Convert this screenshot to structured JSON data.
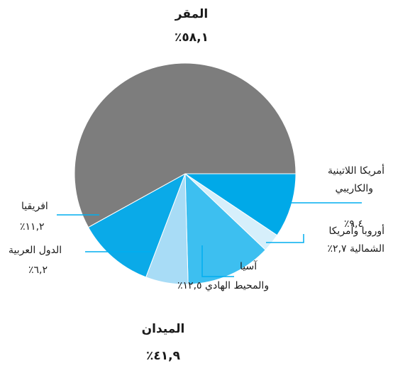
{
  "chart_data": {
    "type": "pie",
    "start_angle_deg": 0,
    "direction": "clockwise",
    "slices": [
      {
        "name": "أمريكا اللاتينية والكاريبي",
        "value": 9.4,
        "color": "#00a9e8"
      },
      {
        "name": "أوروبا وأمريكا الشمالية",
        "value": 2.7,
        "color": "#d6effb"
      },
      {
        "name": "آسيا والمحيط الهادي",
        "value": 12.5,
        "color": "#3dbff0"
      },
      {
        "name": "الدول العربية",
        "value": 6.2,
        "color": "#a8dcf6"
      },
      {
        "name": "افريقيا",
        "value": 11.2,
        "color": "#0aaae8"
      },
      {
        "name": "المقر",
        "value": 58.1,
        "color": "#7d7d7d"
      }
    ],
    "leader_color": "#00aeef"
  },
  "labels": {
    "hq_title": "المقر",
    "hq_value": "٥٨,١٪",
    "field_title": "الميدان",
    "field_value": "٤١,٩٪",
    "latam_line1": "أمريكا اللاتينية",
    "latam_line2": "والكاريبي",
    "latam_value": "٩,٤٪",
    "europe_line1": "أوروبا وأمريكا",
    "europe_line2": "الشمالية ٢,٧٪",
    "asia_line1": "آسيا",
    "asia_line2": "والمحيط الهادي ١٢,٥٪",
    "arab_line1": "الدول العربية",
    "arab_value": "٦,٢٪",
    "africa_line1": "افريقيا",
    "africa_value": "١١,٢٪"
  }
}
